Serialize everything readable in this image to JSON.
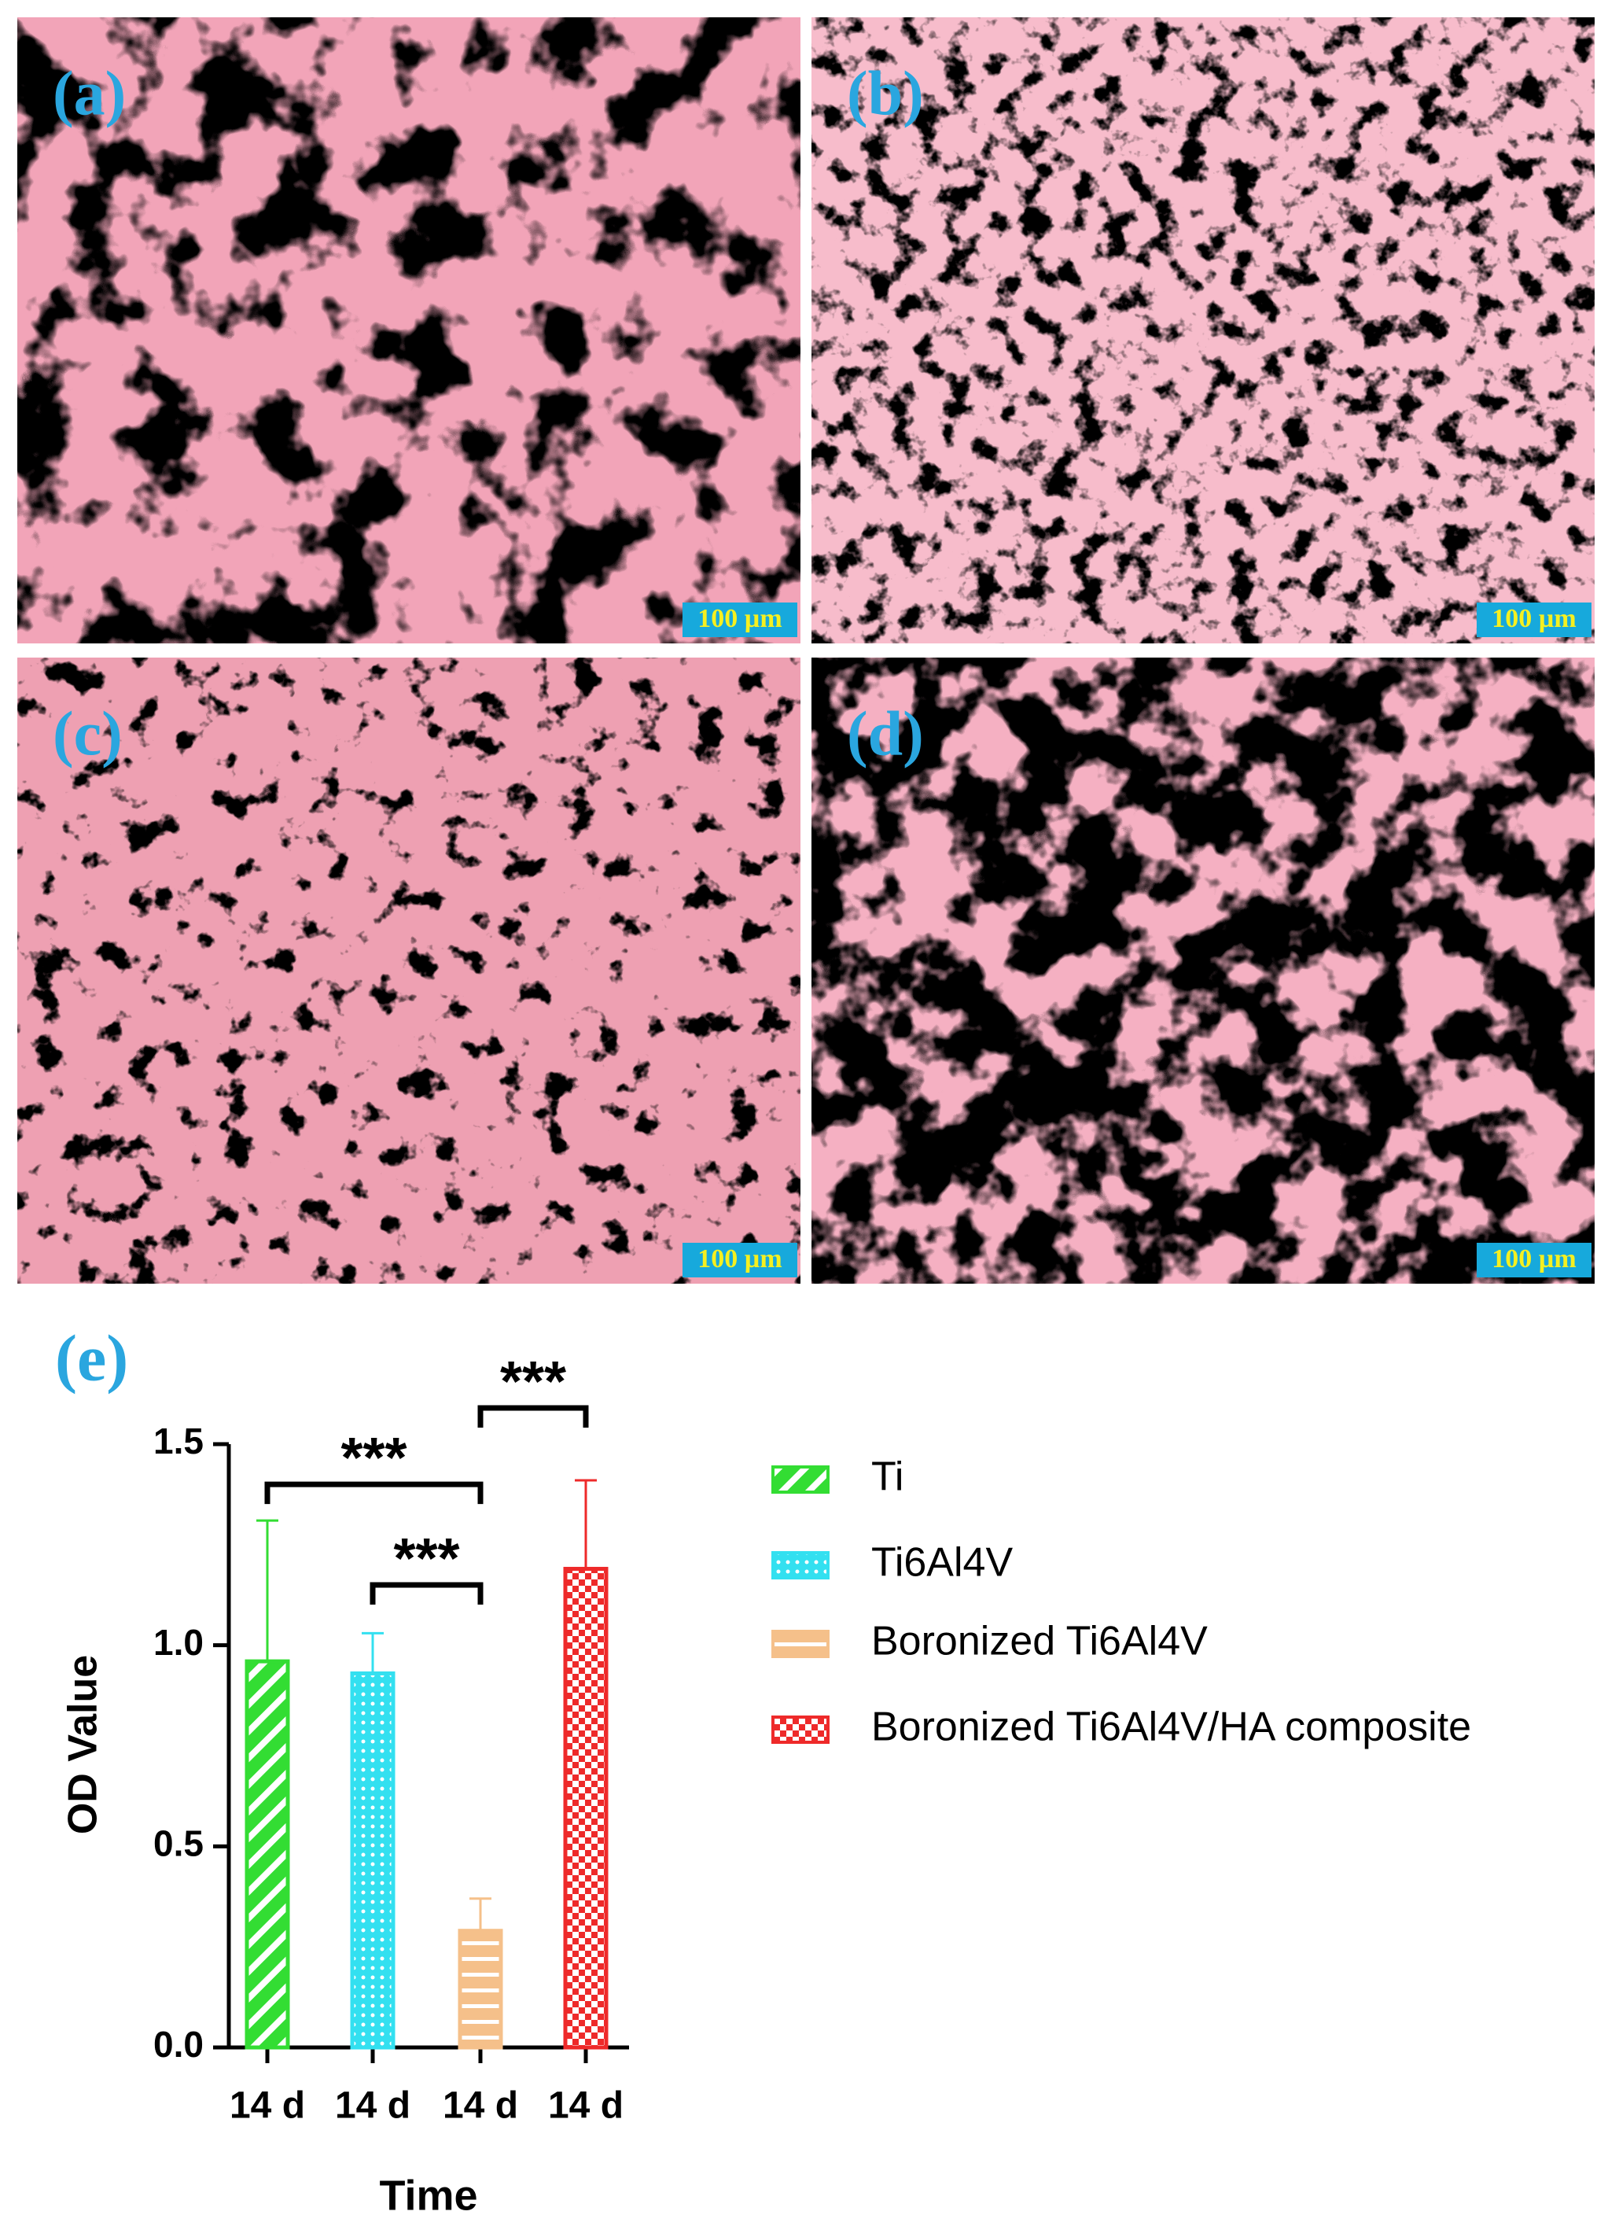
{
  "panels": [
    {
      "label": "(a)",
      "scale_bar": "100 µm"
    },
    {
      "label": "(b)",
      "scale_bar": "100 µm"
    },
    {
      "label": "(c)",
      "scale_bar": "100 µm"
    },
    {
      "label": "(d)",
      "scale_bar": "100 µm"
    }
  ],
  "chart_data": {
    "type": "bar",
    "panel_label": "(e)",
    "ylabel": "OD Value",
    "xlabel": "Time",
    "categories": [
      "14 d",
      "14 d",
      "14 d",
      "14 d"
    ],
    "values": [
      0.96,
      0.93,
      0.29,
      1.19
    ],
    "errors": [
      0.35,
      0.1,
      0.08,
      0.22
    ],
    "legend": [
      "Ti",
      "Ti6Al4V",
      "Boronized Ti6Al4V",
      "Boronized Ti6Al4V/HA composite"
    ],
    "colors": [
      "#33dd33",
      "#33e0f0",
      "#f5c08a",
      "#ee2a2a"
    ],
    "ylim": [
      0,
      1.5
    ],
    "yticks": [
      {
        "value": 0,
        "label": "0.0"
      },
      {
        "value": 0.5,
        "label": "0.5"
      },
      {
        "value": 1,
        "label": "1.0"
      },
      {
        "value": 1.5,
        "label": "1.5"
      }
    ],
    "annotations": [
      {
        "text": "***",
        "from": 0,
        "to": 2,
        "y": 1.4
      },
      {
        "text": "***",
        "from": 1,
        "to": 2,
        "y": 1.15
      },
      {
        "text": "***",
        "from": 2,
        "to": 3,
        "y": 1.59
      }
    ]
  }
}
